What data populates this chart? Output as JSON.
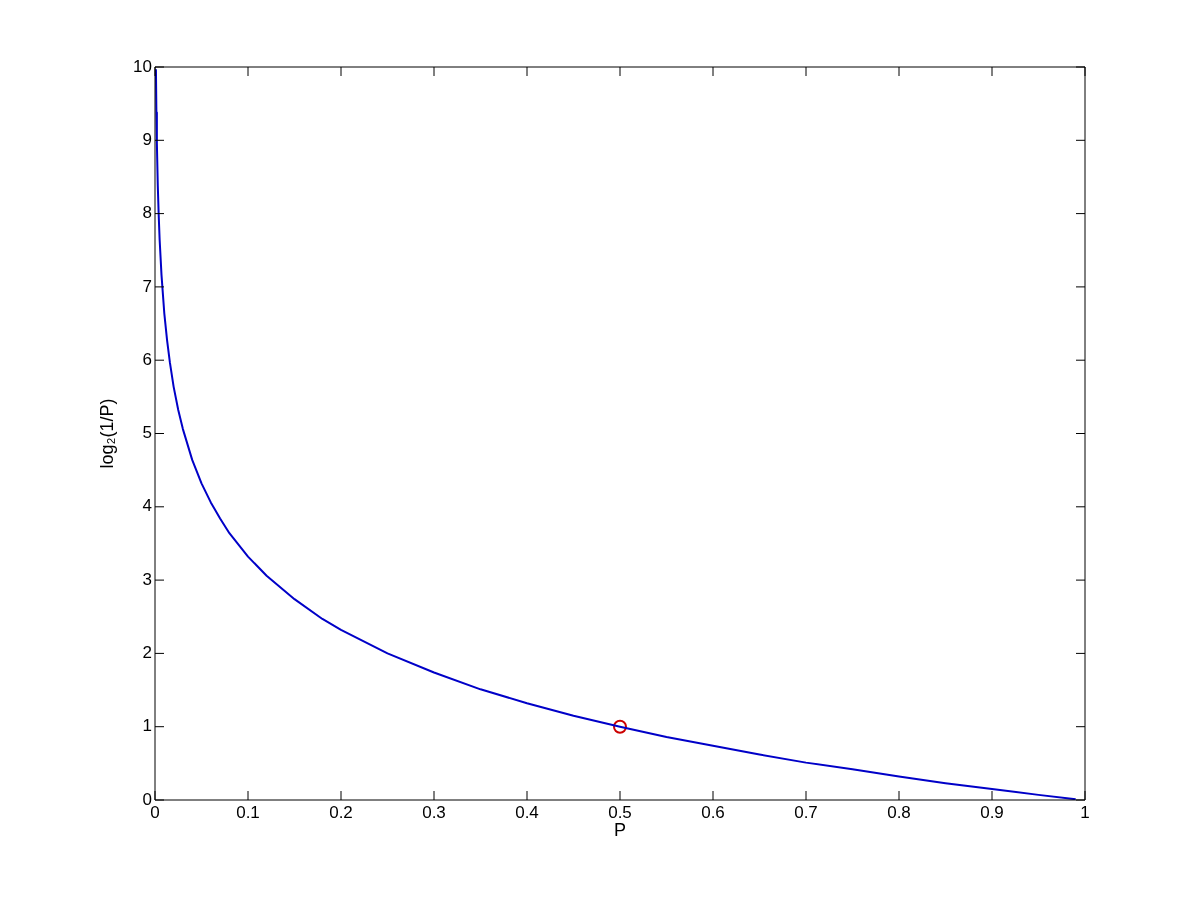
{
  "chart_data": {
    "type": "line",
    "xlabel": "P",
    "ylabel": "log₂(1/P)",
    "xlim": [
      0,
      1
    ],
    "ylim": [
      0,
      10
    ],
    "xticks": [
      0,
      0.1,
      0.2,
      0.3,
      0.4,
      0.5,
      0.6,
      0.7,
      0.8,
      0.9,
      1
    ],
    "yticks": [
      0,
      1,
      2,
      3,
      4,
      5,
      6,
      7,
      8,
      9,
      10
    ],
    "series": [
      {
        "type": "line",
        "color": "#0000c8",
        "marker": "none",
        "x": [
          0.001,
          0.0015,
          0.002,
          0.003,
          0.004,
          0.005,
          0.007,
          0.01,
          0.013,
          0.016,
          0.02,
          0.025,
          0.03,
          0.04,
          0.05,
          0.06,
          0.07,
          0.08,
          0.1,
          0.12,
          0.15,
          0.18,
          0.2,
          0.25,
          0.3,
          0.35,
          0.4,
          0.45,
          0.5,
          0.55,
          0.6,
          0.65,
          0.7,
          0.75,
          0.8,
          0.85,
          0.9,
          0.95,
          0.99
        ],
        "values": [
          9.97,
          9.38,
          8.97,
          8.38,
          7.97,
          7.64,
          7.16,
          6.64,
          6.27,
          5.97,
          5.64,
          5.32,
          5.06,
          4.64,
          4.32,
          4.06,
          3.84,
          3.64,
          3.32,
          3.06,
          2.74,
          2.47,
          2.32,
          2.0,
          1.74,
          1.51,
          1.32,
          1.15,
          1.0,
          0.86,
          0.74,
          0.62,
          0.51,
          0.42,
          0.32,
          0.23,
          0.15,
          0.07,
          0.01
        ]
      },
      {
        "type": "scatter",
        "color": "#cc0000",
        "marker": "circle",
        "x": [
          0.5
        ],
        "values": [
          1
        ]
      }
    ]
  }
}
